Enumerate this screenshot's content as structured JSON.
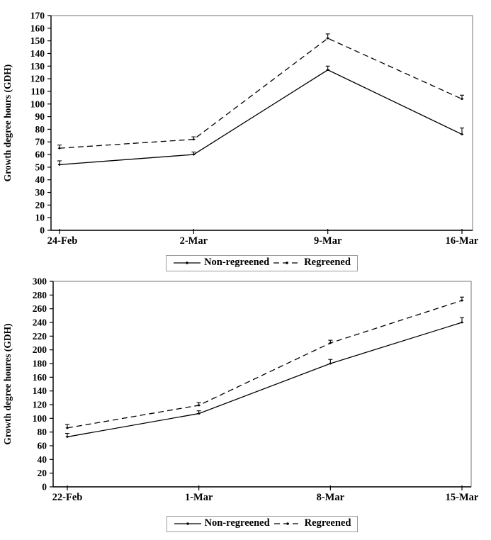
{
  "figure": {
    "background": "#ffffff",
    "line_color": "#000000",
    "plot_border_color": "#8c8c8c"
  },
  "chart_data": [
    {
      "type": "line",
      "title": "",
      "xlabel": "",
      "ylabel": "Growth degree hours (GDH)",
      "categories": [
        "24-Feb",
        "2-Mar",
        "9-Mar",
        "16-Mar"
      ],
      "ylim": [
        0,
        170
      ],
      "ytick_step": 10,
      "grid": false,
      "legend_position": "bottom",
      "error_bars": "up",
      "series": [
        {
          "name": "Non-regreened",
          "style": "solid",
          "values": [
            52,
            60,
            127,
            76
          ],
          "err_up": [
            3,
            2,
            3,
            5
          ]
        },
        {
          "name": "Regreened",
          "style": "dashed",
          "values": [
            65,
            72,
            152,
            104
          ],
          "err_up": [
            2.5,
            2,
            3.5,
            3
          ]
        }
      ]
    },
    {
      "type": "line",
      "title": "",
      "xlabel": "",
      "ylabel": "Growth degree houres (GDH)",
      "categories": [
        "22-Feb",
        "1-Mar",
        "8-Mar",
        "15-Mar"
      ],
      "ylim": [
        0,
        300
      ],
      "ytick_step": 20,
      "grid": false,
      "legend_position": "bottom",
      "error_bars": "up",
      "series": [
        {
          "name": "Non-regreened",
          "style": "solid",
          "values": [
            73,
            107,
            180,
            240
          ],
          "err_up": [
            5,
            4,
            6,
            7
          ]
        },
        {
          "name": "Regreened",
          "style": "dashed",
          "values": [
            86,
            119,
            210,
            272
          ],
          "err_up": [
            5,
            4,
            4,
            5
          ]
        }
      ]
    }
  ]
}
